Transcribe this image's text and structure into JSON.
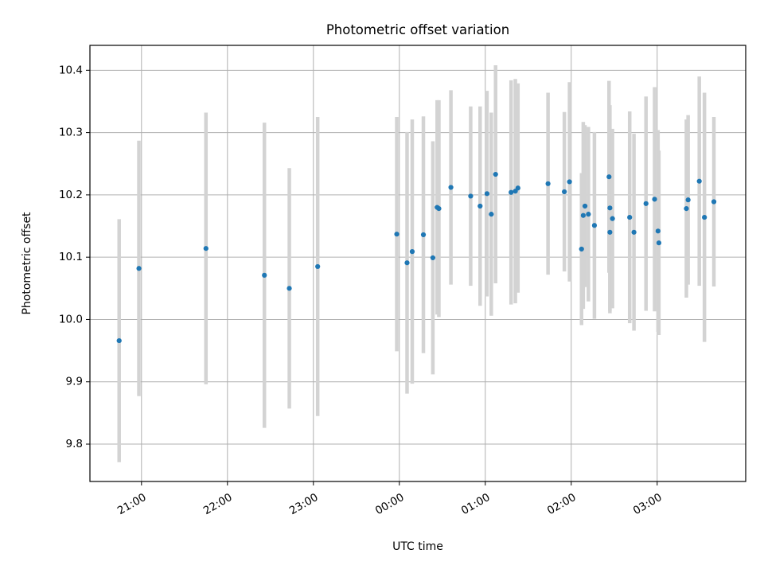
{
  "chart_data": {
    "type": "scatter",
    "title": "Photometric offset variation",
    "xlabel": "UTC time",
    "ylabel": "Photometric offset",
    "x_unit": "hours relative to 00:00 UTC",
    "xlim": [
      -3.6,
      4.03
    ],
    "ylim": [
      9.74,
      10.44
    ],
    "grid": true,
    "xticks": [
      {
        "value": -3,
        "label": "21:00"
      },
      {
        "value": -2,
        "label": "22:00"
      },
      {
        "value": -1,
        "label": "23:00"
      },
      {
        "value": 0,
        "label": "00:00"
      },
      {
        "value": 1,
        "label": "01:00"
      },
      {
        "value": 2,
        "label": "02:00"
      },
      {
        "value": 3,
        "label": "03:00"
      }
    ],
    "yticks": [
      {
        "value": 9.8,
        "label": "9.8"
      },
      {
        "value": 9.9,
        "label": "9.9"
      },
      {
        "value": 10.0,
        "label": "10.0"
      },
      {
        "value": 10.1,
        "label": "10.1"
      },
      {
        "value": 10.2,
        "label": "10.2"
      },
      {
        "value": 10.3,
        "label": "10.3"
      },
      {
        "value": 10.4,
        "label": "10.4"
      }
    ],
    "series": [
      {
        "name": "Photometric offset",
        "marker_color": "#1f77b4",
        "errorbar_color": "#d3d3d3",
        "points": [
          {
            "x": -3.26,
            "y": 9.966,
            "err": 0.195
          },
          {
            "x": -3.03,
            "y": 10.082,
            "err": 0.205
          },
          {
            "x": -2.25,
            "y": 10.114,
            "err": 0.218
          },
          {
            "x": -1.57,
            "y": 10.071,
            "err": 0.245
          },
          {
            "x": -1.28,
            "y": 10.05,
            "err": 0.193
          },
          {
            "x": -0.95,
            "y": 10.085,
            "err": 0.24
          },
          {
            "x": -0.03,
            "y": 10.137,
            "err": 0.188
          },
          {
            "x": 0.09,
            "y": 10.091,
            "err": 0.21
          },
          {
            "x": 0.15,
            "y": 10.109,
            "err": 0.212
          },
          {
            "x": 0.28,
            "y": 10.136,
            "err": 0.19
          },
          {
            "x": 0.39,
            "y": 10.099,
            "err": 0.187
          },
          {
            "x": 0.44,
            "y": 10.18,
            "err": 0.172
          },
          {
            "x": 0.46,
            "y": 10.178,
            "err": 0.174
          },
          {
            "x": 0.6,
            "y": 10.212,
            "err": 0.156
          },
          {
            "x": 0.83,
            "y": 10.198,
            "err": 0.144
          },
          {
            "x": 0.94,
            "y": 10.182,
            "err": 0.16
          },
          {
            "x": 1.02,
            "y": 10.202,
            "err": 0.165
          },
          {
            "x": 1.07,
            "y": 10.169,
            "err": 0.163
          },
          {
            "x": 1.12,
            "y": 10.233,
            "err": 0.175
          },
          {
            "x": 1.3,
            "y": 10.204,
            "err": 0.18
          },
          {
            "x": 1.35,
            "y": 10.206,
            "err": 0.18
          },
          {
            "x": 1.38,
            "y": 10.211,
            "err": 0.168
          },
          {
            "x": 1.73,
            "y": 10.218,
            "err": 0.146
          },
          {
            "x": 1.92,
            "y": 10.205,
            "err": 0.128
          },
          {
            "x": 1.98,
            "y": 10.221,
            "err": 0.16
          },
          {
            "x": 2.12,
            "y": 10.113,
            "err": 0.122
          },
          {
            "x": 2.14,
            "y": 10.167,
            "err": 0.15
          },
          {
            "x": 2.16,
            "y": 10.182,
            "err": 0.13
          },
          {
            "x": 2.2,
            "y": 10.169,
            "err": 0.14
          },
          {
            "x": 2.27,
            "y": 10.151,
            "err": 0.15
          },
          {
            "x": 2.44,
            "y": 10.229,
            "err": 0.154
          },
          {
            "x": 2.45,
            "y": 10.179,
            "err": 0.165
          },
          {
            "x": 2.45,
            "y": 10.14,
            "err": 0.13
          },
          {
            "x": 2.48,
            "y": 10.162,
            "err": 0.144
          },
          {
            "x": 2.68,
            "y": 10.164,
            "err": 0.17
          },
          {
            "x": 2.73,
            "y": 10.14,
            "err": 0.158
          },
          {
            "x": 2.87,
            "y": 10.186,
            "err": 0.172
          },
          {
            "x": 2.97,
            "y": 10.193,
            "err": 0.18
          },
          {
            "x": 3.01,
            "y": 10.142,
            "err": 0.162
          },
          {
            "x": 3.02,
            "y": 10.123,
            "err": 0.148
          },
          {
            "x": 3.34,
            "y": 10.178,
            "err": 0.143
          },
          {
            "x": 3.36,
            "y": 10.192,
            "err": 0.136
          },
          {
            "x": 3.49,
            "y": 10.222,
            "err": 0.168
          },
          {
            "x": 3.55,
            "y": 10.164,
            "err": 0.2
          },
          {
            "x": 3.66,
            "y": 10.189,
            "err": 0.136
          }
        ]
      }
    ]
  }
}
